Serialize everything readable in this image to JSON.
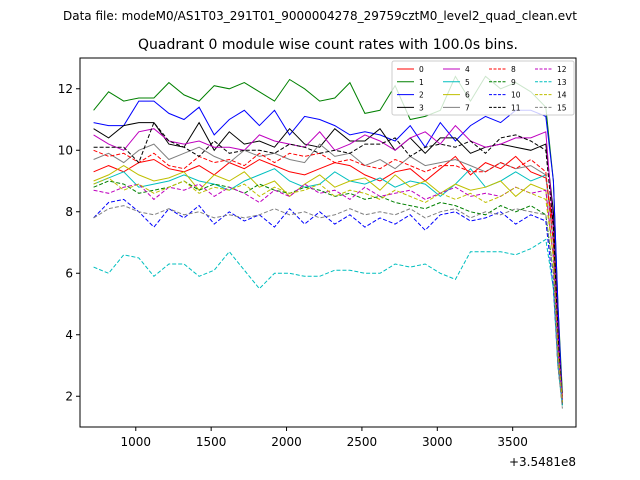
{
  "chart_data": {
    "type": "line",
    "suptitle": "Data file: modeM0/AS1T03_291T01_9000004278_29759cztM0_level2_quad_clean.evt",
    "title": "Quadrant 0 module wise count rates with 100.0s bins.",
    "xlabel": "",
    "ylabel": "",
    "x_offset_label": "+3.5481e8",
    "xlim": [
      630,
      3920
    ],
    "ylim": [
      1.0,
      13.0
    ],
    "xticks": [
      1000,
      1500,
      2000,
      2500,
      3000,
      3500
    ],
    "yticks": [
      2,
      4,
      6,
      8,
      10,
      12
    ],
    "x": [
      720,
      820,
      920,
      1020,
      1120,
      1220,
      1320,
      1420,
      1520,
      1620,
      1720,
      1820,
      1920,
      2020,
      2120,
      2220,
      2320,
      2420,
      2520,
      2620,
      2720,
      2820,
      2920,
      3020,
      3120,
      3220,
      3320,
      3420,
      3520,
      3620,
      3720,
      3770,
      3800,
      3830
    ],
    "legend_position": "upper-right",
    "series": [
      {
        "name": "0",
        "color": "#ff0000",
        "dash": "solid",
        "values": [
          9.3,
          9.5,
          9.3,
          9.6,
          9.7,
          9.4,
          9.3,
          9.5,
          9.2,
          9.6,
          9.4,
          9.7,
          9.5,
          9.3,
          9.2,
          9.4,
          9.6,
          9.5,
          9.2,
          9.0,
          9.3,
          9.4,
          9.0,
          9.4,
          9.8,
          9.2,
          9.6,
          9.4,
          9.8,
          9.3,
          9.1,
          7.5,
          4.5,
          2.0
        ]
      },
      {
        "name": "1",
        "color": "#008000",
        "dash": "solid",
        "values": [
          11.3,
          11.9,
          11.6,
          11.7,
          11.7,
          12.2,
          11.8,
          11.6,
          12.1,
          12.0,
          12.2,
          11.9,
          11.6,
          12.3,
          12.0,
          11.6,
          11.7,
          12.2,
          11.2,
          11.3,
          12.1,
          11.0,
          11.1,
          11.3,
          12.4,
          11.6,
          12.4,
          12.0,
          12.2,
          11.9,
          11.4,
          9.0,
          5.0,
          2.1
        ]
      },
      {
        "name": "2",
        "color": "#0000ff",
        "dash": "solid",
        "values": [
          10.9,
          10.8,
          10.8,
          11.6,
          11.6,
          11.2,
          11.0,
          11.4,
          10.5,
          11.0,
          11.3,
          10.8,
          11.3,
          10.5,
          11.1,
          11.0,
          10.8,
          10.5,
          10.6,
          10.5,
          10.3,
          10.8,
          10.1,
          10.9,
          10.3,
          10.8,
          11.1,
          10.9,
          11.3,
          11.3,
          11.1,
          9.0,
          5.0,
          1.8
        ]
      },
      {
        "name": "3",
        "color": "#000000",
        "dash": "solid",
        "values": [
          10.7,
          10.4,
          10.8,
          10.9,
          10.9,
          10.2,
          10.1,
          10.9,
          10.0,
          10.6,
          10.2,
          10.3,
          10.1,
          10.7,
          10.2,
          10.1,
          10.7,
          10.3,
          10.3,
          10.7,
          10.0,
          10.4,
          9.9,
          10.4,
          10.4,
          9.9,
          10.1,
          10.2,
          10.1,
          10.0,
          10.2,
          8.0,
          4.0,
          1.7
        ]
      },
      {
        "name": "4",
        "color": "#bf00bf",
        "dash": "solid",
        "values": [
          10.5,
          10.2,
          10.0,
          10.6,
          10.7,
          10.3,
          10.2,
          10.3,
          10.1,
          10.1,
          10.0,
          10.5,
          10.3,
          10.2,
          10.1,
          10.6,
          10.0,
          10.2,
          10.5,
          10.3,
          10.0,
          10.4,
          10.6,
          10.2,
          10.8,
          10.3,
          10.1,
          10.2,
          10.4,
          10.4,
          10.6,
          7.5,
          4.0,
          1.9
        ]
      },
      {
        "name": "5",
        "color": "#00bfbf",
        "dash": "solid",
        "values": [
          8.9,
          9.1,
          9.3,
          8.8,
          8.9,
          9.0,
          9.2,
          9.0,
          8.9,
          8.7,
          9.0,
          9.2,
          9.4,
          9.0,
          8.8,
          8.9,
          9.3,
          9.0,
          8.9,
          9.1,
          8.8,
          9.0,
          8.9,
          8.5,
          8.9,
          9.4,
          8.8,
          9.0,
          9.3,
          9.0,
          9.2,
          7.0,
          3.5,
          1.8
        ]
      },
      {
        "name": "6",
        "color": "#bfbf00",
        "dash": "solid",
        "values": [
          9.0,
          9.2,
          9.5,
          9.2,
          9.0,
          9.1,
          9.3,
          8.7,
          9.2,
          9.0,
          9.3,
          8.8,
          9.0,
          8.5,
          8.9,
          9.2,
          8.8,
          9.0,
          9.1,
          8.7,
          9.2,
          8.8,
          9.0,
          8.6,
          8.9,
          8.7,
          8.8,
          9.0,
          8.5,
          8.9,
          8.7,
          6.5,
          3.5,
          1.8
        ]
      },
      {
        "name": "7",
        "color": "#808080",
        "dash": "solid",
        "values": [
          9.7,
          9.9,
          9.6,
          10.0,
          10.2,
          9.7,
          9.9,
          10.1,
          9.8,
          9.6,
          10.0,
          9.8,
          9.9,
          9.7,
          9.6,
          10.2,
          9.8,
          9.9,
          9.5,
          9.7,
          9.4,
          9.8,
          9.5,
          9.6,
          9.7,
          9.5,
          9.3,
          9.6,
          9.4,
          9.5,
          9.2,
          7.0,
          3.5,
          1.7
        ]
      },
      {
        "name": "8",
        "color": "#ff0000",
        "dash": "dashed",
        "values": [
          10.0,
          9.8,
          9.9,
          9.6,
          9.9,
          9.5,
          9.4,
          9.8,
          9.6,
          9.7,
          9.5,
          9.9,
          9.6,
          9.9,
          9.8,
          9.9,
          9.6,
          9.7,
          9.5,
          9.4,
          9.7,
          9.5,
          9.3,
          9.5,
          9.5,
          9.3,
          9.3,
          9.6,
          9.4,
          9.7,
          9.3,
          7.0,
          3.5,
          1.9
        ]
      },
      {
        "name": "9",
        "color": "#008000",
        "dash": "dashed",
        "values": [
          8.8,
          9.0,
          8.9,
          8.6,
          8.7,
          8.8,
          9.0,
          8.7,
          8.9,
          8.8,
          8.6,
          8.9,
          8.7,
          8.6,
          8.8,
          8.7,
          8.5,
          8.6,
          8.4,
          8.5,
          8.3,
          8.2,
          8.1,
          8.3,
          8.2,
          8.0,
          7.9,
          8.2,
          8.0,
          8.2,
          7.9,
          6.0,
          3.0,
          1.7
        ]
      },
      {
        "name": "10",
        "color": "#0000ff",
        "dash": "dashed",
        "values": [
          7.8,
          8.3,
          8.4,
          8.0,
          7.5,
          8.1,
          7.8,
          8.2,
          7.6,
          8.0,
          7.7,
          7.9,
          7.5,
          8.1,
          7.6,
          8.0,
          7.6,
          7.9,
          7.5,
          7.8,
          7.6,
          7.9,
          7.4,
          7.9,
          8.0,
          7.7,
          7.8,
          8.0,
          7.6,
          7.9,
          7.7,
          5.5,
          3.0,
          1.7
        ]
      },
      {
        "name": "11",
        "color": "#000000",
        "dash": "dashed",
        "values": [
          10.1,
          10.1,
          10.1,
          9.6,
          10.9,
          10.3,
          10.1,
          9.8,
          10.3,
          9.9,
          10.0,
          10.0,
          9.9,
          10.2,
          10.1,
          9.9,
          10.0,
          9.9,
          10.2,
          10.2,
          10.4,
          9.8,
          10.1,
          10.2,
          10.1,
          10.3,
          9.9,
          10.4,
          10.5,
          10.3,
          10.0,
          7.5,
          4.0,
          1.8
        ]
      },
      {
        "name": "12",
        "color": "#bf00bf",
        "dash": "dashed",
        "values": [
          8.7,
          8.6,
          8.8,
          8.9,
          8.4,
          8.8,
          8.7,
          8.9,
          8.5,
          8.8,
          8.6,
          8.3,
          8.7,
          8.5,
          8.9,
          8.6,
          8.7,
          8.4,
          8.8,
          8.5,
          8.6,
          8.7,
          8.4,
          8.6,
          8.8,
          8.5,
          8.6,
          8.5,
          8.8,
          8.6,
          8.7,
          6.5,
          3.5,
          1.8
        ]
      },
      {
        "name": "13",
        "color": "#00bfbf",
        "dash": "dashed",
        "values": [
          6.2,
          6.0,
          6.6,
          6.5,
          5.9,
          6.3,
          6.3,
          5.9,
          6.1,
          6.7,
          6.1,
          5.5,
          6.0,
          6.0,
          5.9,
          5.9,
          6.1,
          6.1,
          6.0,
          6.0,
          6.3,
          6.2,
          6.3,
          6.0,
          5.8,
          6.7,
          6.7,
          6.7,
          6.6,
          6.8,
          7.1,
          5.5,
          3.0,
          1.7
        ]
      },
      {
        "name": "14",
        "color": "#bfbf00",
        "dash": "dashed",
        "values": [
          8.9,
          9.1,
          8.7,
          8.9,
          8.6,
          8.8,
          9.0,
          8.6,
          8.8,
          8.7,
          8.9,
          8.5,
          8.8,
          8.6,
          8.7,
          8.9,
          8.5,
          8.7,
          8.6,
          8.4,
          8.7,
          8.5,
          8.3,
          8.6,
          8.4,
          8.6,
          8.3,
          8.5,
          8.8,
          8.6,
          8.4,
          6.5,
          3.5,
          1.8
        ]
      },
      {
        "name": "15",
        "color": "#808080",
        "dash": "dashed",
        "values": [
          7.8,
          8.1,
          8.2,
          8.0,
          7.9,
          8.1,
          7.9,
          8.0,
          7.8,
          7.9,
          7.8,
          7.9,
          8.1,
          7.9,
          8.0,
          7.8,
          7.9,
          8.1,
          7.9,
          8.0,
          7.9,
          8.1,
          7.8,
          8.0,
          8.1,
          7.8,
          8.0,
          7.9,
          8.1,
          8.0,
          7.9,
          6.0,
          3.0,
          1.6
        ]
      }
    ]
  }
}
